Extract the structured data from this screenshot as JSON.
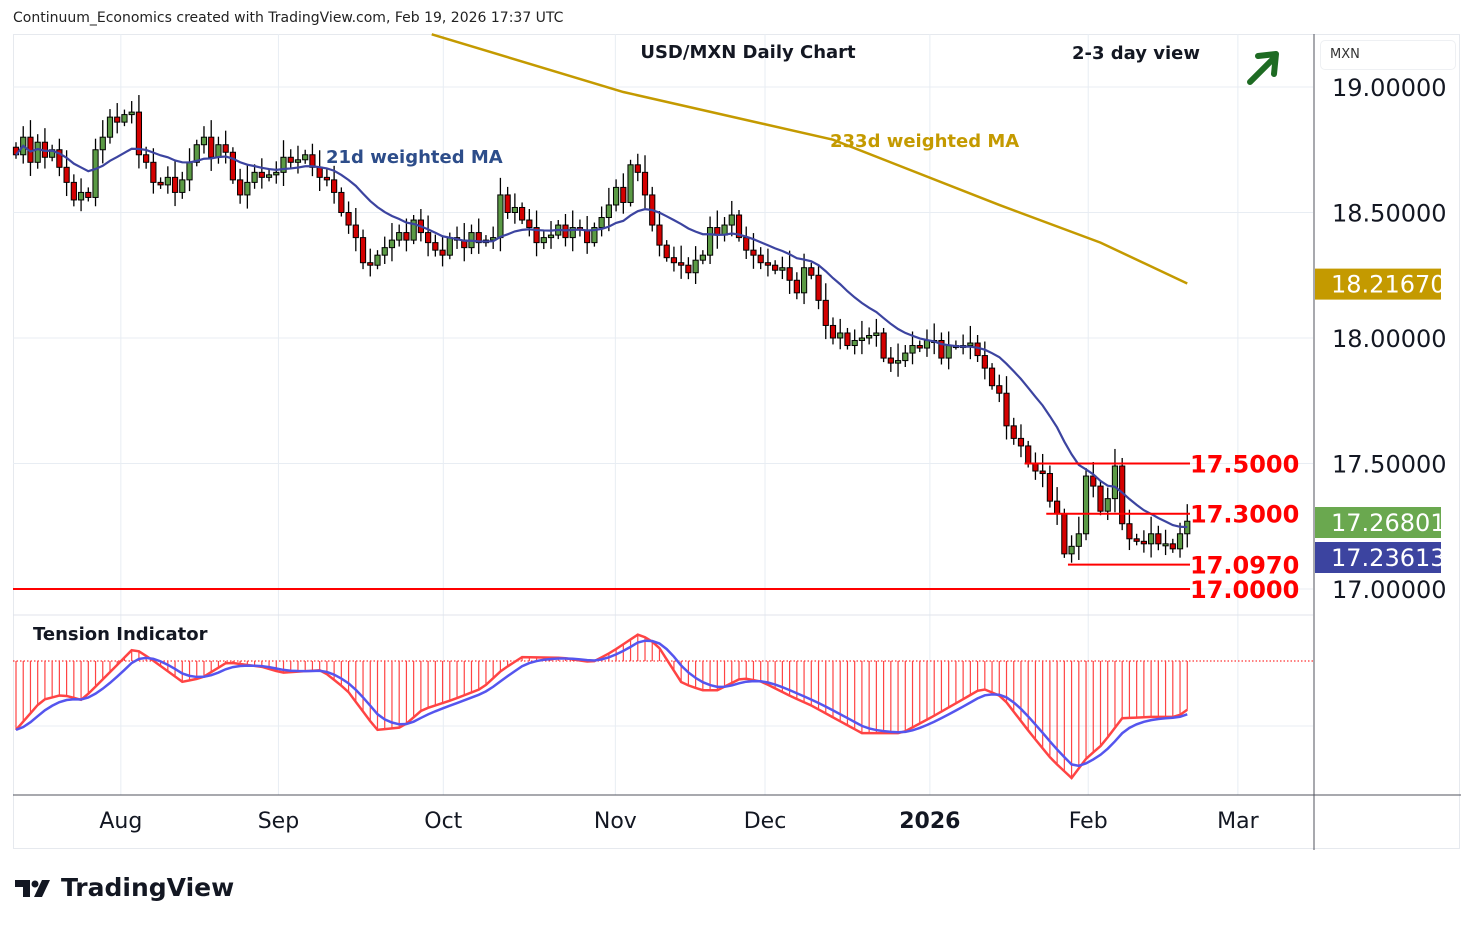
{
  "header": {
    "credit": "Continuum_Economics created with TradingView.com, Feb 19, 2026 17:37 UTC"
  },
  "chart_data": {
    "type": "candlestick",
    "title": "USD/MXN Daily Chart",
    "subtitle": "2-3 day view",
    "currency": "MXN",
    "outlook": "up",
    "y_ticks": [
      "19.00000",
      "18.50000",
      "18.00000",
      "17.50000",
      "17.00000"
    ],
    "y_tick_values": [
      19.0,
      18.5,
      18.0,
      17.5,
      17.0
    ],
    "ylim": [
      16.95,
      19.2
    ],
    "x_ticks": [
      {
        "label": "Aug",
        "bar": 14.5,
        "bold": false
      },
      {
        "label": "Sep",
        "bar": 36.3,
        "bold": false
      },
      {
        "label": "Oct",
        "bar": 59.1,
        "bold": false
      },
      {
        "label": "Nov",
        "bar": 82.9,
        "bold": false
      },
      {
        "label": "Dec",
        "bar": 103.6,
        "bold": false
      },
      {
        "label": "2026",
        "bar": 126.4,
        "bold": true
      },
      {
        "label": "Feb",
        "bar": 148.3,
        "bold": false
      },
      {
        "label": "Mar",
        "bar": 169.0,
        "bold": false
      }
    ],
    "closes": [
      18.73,
      18.8,
      18.7,
      18.78,
      18.72,
      18.75,
      18.68,
      18.62,
      18.55,
      18.58,
      18.56,
      18.75,
      18.8,
      18.88,
      18.86,
      18.89,
      18.9,
      18.73,
      18.7,
      18.62,
      18.61,
      18.64,
      18.58,
      18.63,
      18.7,
      18.77,
      18.8,
      18.72,
      18.77,
      18.74,
      18.63,
      18.57,
      18.62,
      18.66,
      18.64,
      18.65,
      18.66,
      18.72,
      18.7,
      18.71,
      18.73,
      18.68,
      18.64,
      18.63,
      18.58,
      18.5,
      18.45,
      18.4,
      18.3,
      18.29,
      18.33,
      18.36,
      18.39,
      18.42,
      18.39,
      18.47,
      18.42,
      18.38,
      18.35,
      18.33,
      18.4,
      18.39,
      18.36,
      18.42,
      18.38,
      18.39,
      18.4,
      18.57,
      18.5,
      18.52,
      18.47,
      18.44,
      18.38,
      18.4,
      18.41,
      18.45,
      18.4,
      18.44,
      18.43,
      18.38,
      18.44,
      18.48,
      18.53,
      18.6,
      18.54,
      18.69,
      18.66,
      18.57,
      18.45,
      18.37,
      18.32,
      18.3,
      18.29,
      18.26,
      18.31,
      18.33,
      18.44,
      18.41,
      18.45,
      18.49,
      18.4,
      18.35,
      18.33,
      18.3,
      18.29,
      18.27,
      18.28,
      18.23,
      18.18,
      18.28,
      18.25,
      18.15,
      18.05,
      18.0,
      18.02,
      17.97,
      17.99,
      18.0,
      18.01,
      18.02,
      17.92,
      17.9,
      17.91,
      17.94,
      17.97,
      17.96,
      17.99,
      17.99,
      17.92,
      17.97,
      17.97,
      17.97,
      17.98,
      17.93,
      17.88,
      17.81,
      17.78,
      17.65,
      17.6,
      17.57,
      17.5,
      17.47,
      17.46,
      17.35,
      17.3,
      17.14,
      17.17,
      17.22,
      17.45,
      17.41,
      17.31,
      17.36,
      17.49,
      17.26,
      17.2,
      17.19,
      17.18,
      17.22,
      17.18,
      17.18,
      17.16,
      17.22,
      17.27
    ],
    "ma21": {
      "label": "21d weighted MA",
      "color": "#3c44a0",
      "last": "17.23613"
    },
    "ma233": {
      "label": "233d weighted MA",
      "color": "#c49a00",
      "last": "18.21670",
      "points": [
        [
          57.5,
          19.21
        ],
        [
          84,
          18.98
        ],
        [
          113,
          18.79
        ],
        [
          136,
          18.53
        ],
        [
          150,
          18.38
        ],
        [
          162,
          18.217
        ]
      ]
    },
    "last_price": {
      "value": "17.26801",
      "color": "#6aa84f"
    },
    "levels": [
      {
        "value": 17.5,
        "label": "17.5000",
        "from_bar": 139.5
      },
      {
        "value": 17.3,
        "label": "17.3000",
        "from_bar": 142.5
      },
      {
        "value": 17.097,
        "label": "17.0970",
        "from_bar": 145.5
      },
      {
        "value": 17.0,
        "label": "17.0000",
        "from_bar": -1
      }
    ],
    "level_color": "#ff0000",
    "indicator": {
      "title": "Tension Indicator",
      "oscillator_color": "#ff4444",
      "signal_color": "#5555ee",
      "oscillator": [
        [
          0,
          -1.06
        ],
        [
          3.6,
          -0.6
        ],
        [
          6.4,
          -0.52
        ],
        [
          9.1,
          -0.6
        ],
        [
          10.5,
          -0.45
        ],
        [
          14,
          -0.06
        ],
        [
          16.3,
          0.2
        ],
        [
          18.8,
          0.02
        ],
        [
          23,
          -0.32
        ],
        [
          25.7,
          -0.26
        ],
        [
          29.2,
          -0.02
        ],
        [
          34,
          -0.09
        ],
        [
          36.8,
          -0.18
        ],
        [
          42.3,
          -0.14
        ],
        [
          45.8,
          -0.45
        ],
        [
          49.9,
          -1.06
        ],
        [
          53.4,
          -1.02
        ],
        [
          56.2,
          -0.75
        ],
        [
          60.3,
          -0.6
        ],
        [
          64.5,
          -0.42
        ],
        [
          67.2,
          -0.14
        ],
        [
          70,
          0.06
        ],
        [
          75.5,
          0.05
        ],
        [
          79.7,
          -0.02
        ],
        [
          82.4,
          0.14
        ],
        [
          86.2,
          0.42
        ],
        [
          88.7,
          0.25
        ],
        [
          92.1,
          -0.34
        ],
        [
          94.9,
          -0.45
        ],
        [
          97,
          -0.45
        ],
        [
          100.4,
          -0.26
        ],
        [
          103.2,
          -0.32
        ],
        [
          107.3,
          -0.55
        ],
        [
          110.1,
          -0.69
        ],
        [
          114.2,
          -0.94
        ],
        [
          117,
          -1.11
        ],
        [
          122.5,
          -1.11
        ],
        [
          126.7,
          -0.86
        ],
        [
          130.8,
          -0.6
        ],
        [
          133.6,
          -0.42
        ],
        [
          136.4,
          -0.55
        ],
        [
          140.5,
          -1.14
        ],
        [
          143.3,
          -1.52
        ],
        [
          146,
          -1.8
        ],
        [
          148.1,
          -1.49
        ],
        [
          150.2,
          -1.29
        ],
        [
          153,
          -0.88
        ],
        [
          157.1,
          -0.86
        ],
        [
          160.6,
          -0.86
        ],
        [
          162,
          -0.75
        ]
      ]
    }
  },
  "branding": {
    "logo_text": "TradingView"
  }
}
